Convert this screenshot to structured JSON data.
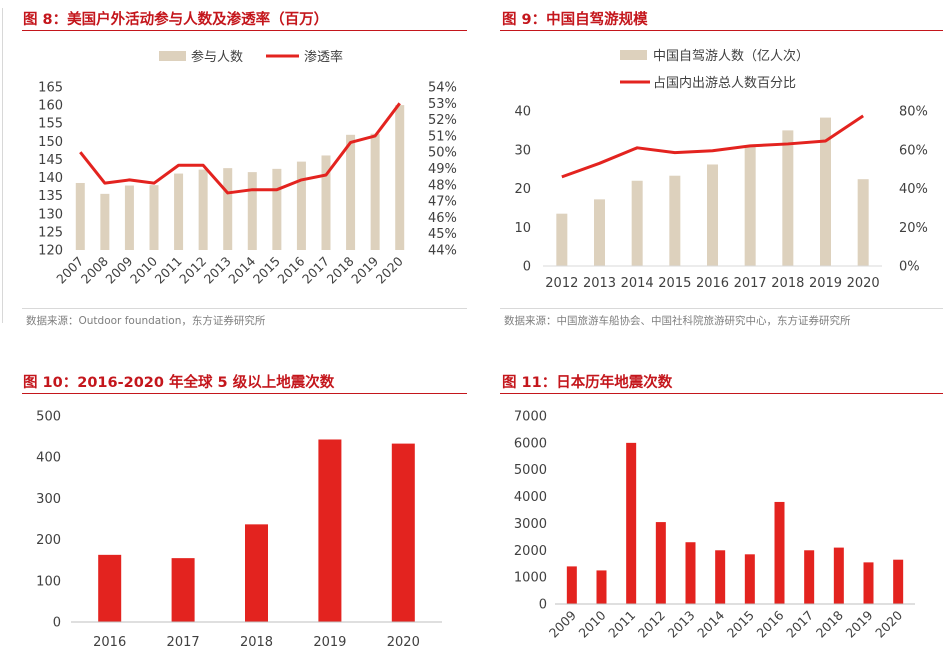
{
  "colors": {
    "accent": "#c4161c",
    "bar_beige": "#ddd1bd",
    "bar_red": "#e3231f",
    "line_red": "#e3231f",
    "source_gray": "#7f7f7f"
  },
  "panels": {
    "p1": {
      "title": "图 8：美国户外活动参与人数及渗透率（百万）",
      "source": "数据来源：Outdoor foundation，东方证券研究所"
    },
    "p2": {
      "title": "图 9：中国自驾游规模",
      "source": "数据来源：中国旅游车船协会、中国社科院旅游研究中心，东方证券研究所"
    },
    "p3": {
      "title": "图 10：2016-2020 年全球 5 级以上地震次数"
    },
    "p4": {
      "title": "图 11：日本历年地震次数"
    }
  },
  "chart_data": [
    {
      "type": "bar",
      "categories": [
        "2007",
        "2008",
        "2009",
        "2010",
        "2011",
        "2012",
        "2013",
        "2014",
        "2015",
        "2016",
        "2017",
        "2018",
        "2019",
        "2020"
      ],
      "series": [
        {
          "name": "参与人数",
          "type": "bar",
          "axis": "left",
          "values": [
            138.5,
            135.5,
            137.8,
            137.9,
            141.1,
            142.2,
            142.6,
            141.5,
            142.4,
            144.4,
            146.1,
            151.8,
            152.1,
            160.0
          ]
        },
        {
          "name": "渗透率",
          "type": "line",
          "axis": "right",
          "values": [
            50.0,
            48.1,
            48.3,
            48.1,
            49.2,
            49.2,
            47.5,
            47.7,
            47.7,
            48.3,
            48.6,
            50.6,
            51.0,
            53.0
          ]
        }
      ],
      "yleft_ticks": [
        "120",
        "125",
        "130",
        "135",
        "140",
        "145",
        "150",
        "155",
        "160",
        "165"
      ],
      "yleft_lim": [
        120,
        165
      ],
      "yright_ticks": [
        "44%",
        "45%",
        "46%",
        "47%",
        "48%",
        "49%",
        "50%",
        "51%",
        "52%",
        "53%",
        "54%"
      ],
      "yright_lim": [
        44,
        54
      ],
      "legend_position": "top-center",
      "grid": false
    },
    {
      "type": "bar",
      "categories": [
        "2012",
        "2013",
        "2014",
        "2015",
        "2016",
        "2017",
        "2018",
        "2019",
        "2020"
      ],
      "series": [
        {
          "name": "中国自驾游人数（亿人次）",
          "type": "bar",
          "axis": "left",
          "values": [
            13.5,
            17.2,
            22,
            23.3,
            26.2,
            31,
            35,
            38.3,
            22.4
          ]
        },
        {
          "name": "占国内出游总人数百分比",
          "type": "line",
          "axis": "right",
          "values": [
            46,
            53,
            61,
            58.5,
            59.5,
            62,
            63,
            64.5,
            77.5
          ]
        }
      ],
      "yleft_ticks": [
        "0",
        "10",
        "20",
        "30",
        "40"
      ],
      "yleft_lim": [
        0,
        40
      ],
      "yright_ticks": [
        "0%",
        "20%",
        "40%",
        "60%",
        "80%"
      ],
      "yright_lim": [
        0,
        80
      ],
      "legend_position": "top-left",
      "grid": false
    },
    {
      "type": "bar",
      "categories": [
        "2016",
        "2017",
        "2018",
        "2019",
        "2020"
      ],
      "series": [
        {
          "values": [
            163,
            155,
            237,
            443,
            433
          ]
        }
      ],
      "y_ticks": [
        "0",
        "100",
        "200",
        "300",
        "400",
        "500"
      ],
      "ylim": [
        0,
        500
      ],
      "grid": false
    },
    {
      "type": "bar",
      "categories": [
        "2009",
        "2010",
        "2011",
        "2012",
        "2013",
        "2014",
        "2015",
        "2016",
        "2017",
        "2018",
        "2019",
        "2020"
      ],
      "series": [
        {
          "values": [
            1400,
            1250,
            6000,
            3050,
            2300,
            2000,
            1850,
            3800,
            2000,
            2100,
            1550,
            1650
          ]
        }
      ],
      "y_ticks": [
        "0",
        "1000",
        "2000",
        "3000",
        "4000",
        "5000",
        "6000",
        "7000"
      ],
      "ylim": [
        0,
        7000
      ],
      "grid": false
    }
  ]
}
